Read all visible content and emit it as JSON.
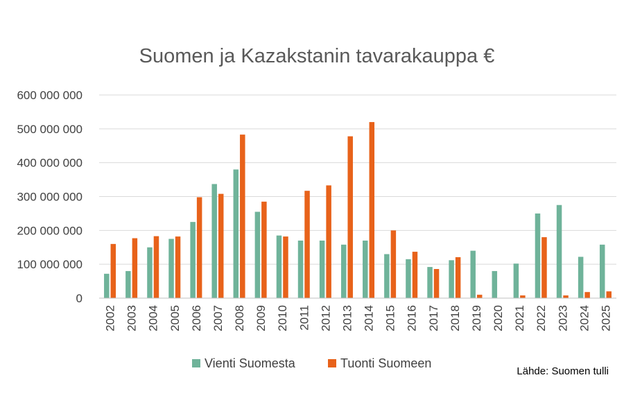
{
  "chart_data": {
    "type": "bar",
    "title": "Suomen ja Kazakstanin tavarakauppa €",
    "xlabel": "",
    "ylabel": "",
    "ylim": [
      0,
      600000000
    ],
    "yticks": [
      0,
      100000000,
      200000000,
      300000000,
      400000000,
      500000000,
      600000000
    ],
    "ytick_labels": [
      "0",
      "100 000 000",
      "200 000 000",
      "300 000 000",
      "400 000 000",
      "500 000 000",
      "600 000 000"
    ],
    "grid": true,
    "legend_position": "bottom",
    "categories": [
      "2002",
      "2003",
      "2004",
      "2005",
      "2006",
      "2007",
      "2008",
      "2009",
      "2010",
      "2011",
      "2012",
      "2013",
      "2014",
      "2015",
      "2016",
      "2017",
      "2018",
      "2019",
      "2020",
      "2021",
      "2022",
      "2023",
      "2024",
      "2025"
    ],
    "series": [
      {
        "name": "Vienti Suomesta",
        "color": "#6fb39a",
        "values": [
          72000000,
          80000000,
          150000000,
          175000000,
          225000000,
          337000000,
          380000000,
          255000000,
          185000000,
          170000000,
          170000000,
          158000000,
          170000000,
          130000000,
          115000000,
          92000000,
          112000000,
          140000000,
          80000000,
          102000000,
          250000000,
          275000000,
          122000000,
          158000000
        ]
      },
      {
        "name": "Tuonti Suomeen",
        "color": "#e8621a",
        "values": [
          160000000,
          177000000,
          183000000,
          182000000,
          298000000,
          308000000,
          483000000,
          285000000,
          182000000,
          317000000,
          333000000,
          478000000,
          520000000,
          200000000,
          137000000,
          86000000,
          121000000,
          10000000,
          0,
          8000000,
          180000000,
          8000000,
          18000000,
          20000000
        ]
      }
    ]
  },
  "source_note": "Lähde: Suomen tulli"
}
